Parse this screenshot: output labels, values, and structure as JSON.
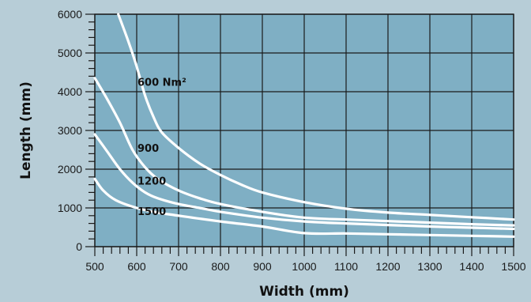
{
  "chart_data": {
    "type": "line",
    "xlabel": "Width (mm)",
    "ylabel": "Length (mm)",
    "xlim": [
      500,
      1500
    ],
    "ylim": [
      0,
      6000
    ],
    "x_ticks": [
      500,
      600,
      700,
      800,
      900,
      1000,
      1100,
      1200,
      1300,
      1400,
      1500
    ],
    "y_ticks": [
      0,
      1000,
      2000,
      3000,
      4000,
      5000,
      6000
    ],
    "grid": true,
    "legend": "none",
    "colors": {
      "plot_background": "#7fafc4",
      "page_background": "#b7cdd7",
      "grid": "#1a1a1a",
      "series_line": "#ffffff"
    },
    "series": [
      {
        "name": "600 Nm²",
        "x": [
          556,
          580,
          600,
          620,
          640,
          660,
          700,
          750,
          800,
          850,
          900,
          1000,
          1100,
          1200,
          1300,
          1400,
          1500
        ],
        "y": [
          6000,
          5300,
          4650,
          3900,
          3350,
          2950,
          2550,
          2150,
          1850,
          1600,
          1400,
          1150,
          980,
          880,
          820,
          760,
          700
        ]
      },
      {
        "name": "900",
        "x": [
          500,
          530,
          560,
          590,
          620,
          650,
          700,
          750,
          800,
          900,
          1000,
          1100,
          1200,
          1300,
          1400,
          1500
        ],
        "y": [
          4350,
          3800,
          3200,
          2500,
          2050,
          1750,
          1450,
          1250,
          1100,
          900,
          750,
          700,
          660,
          620,
          580,
          550
        ]
      },
      {
        "name": "1200",
        "x": [
          500,
          530,
          560,
          590,
          620,
          650,
          700,
          750,
          800,
          900,
          1000,
          1100,
          1200,
          1300,
          1400,
          1500
        ],
        "y": [
          2900,
          2450,
          2000,
          1650,
          1400,
          1250,
          1100,
          1000,
          900,
          750,
          650,
          600,
          560,
          520,
          490,
          460
        ]
      },
      {
        "name": "1500",
        "x": [
          500,
          520,
          550,
          600,
          650,
          700,
          800,
          900,
          1000,
          1100,
          1200,
          1300,
          1400,
          1500
        ],
        "y": [
          1750,
          1450,
          1200,
          1000,
          880,
          800,
          650,
          520,
          350,
          340,
          320,
          300,
          280,
          260
        ]
      }
    ]
  }
}
